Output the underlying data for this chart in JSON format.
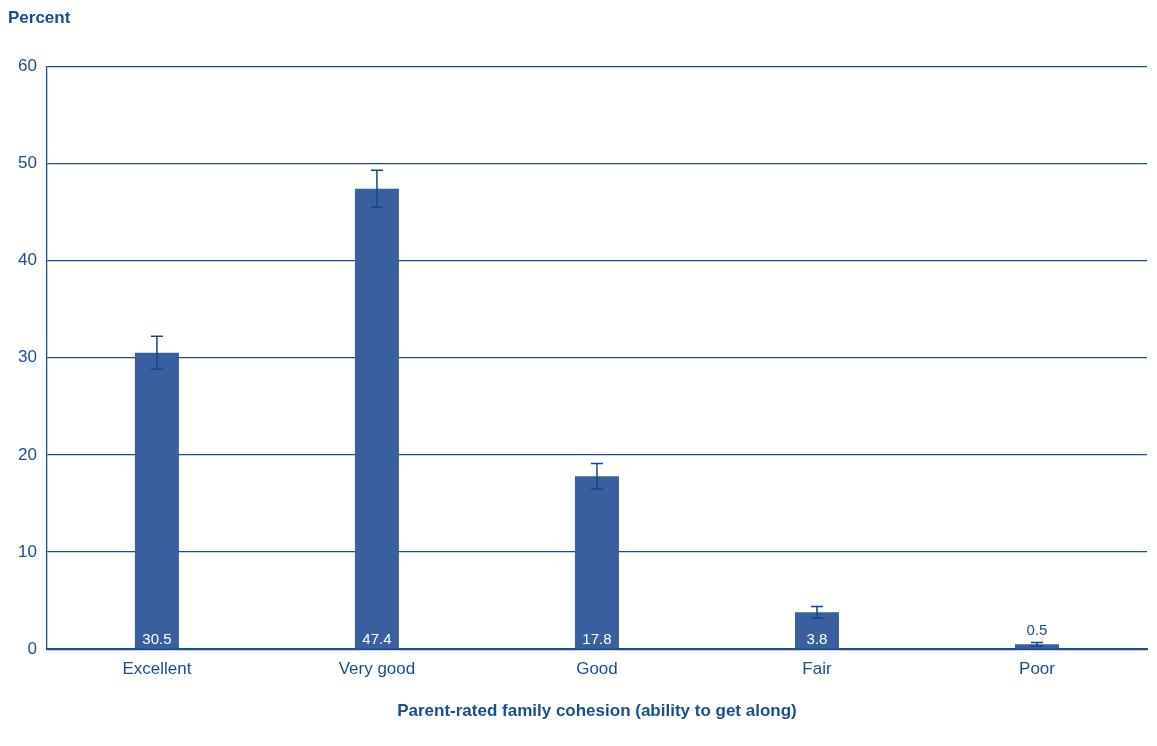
{
  "chart_data": {
    "type": "bar",
    "xlabel": "Parent-rated family cohesion (ability to get along)",
    "ylabel": "Percent",
    "categories": [
      "Excellent",
      "Very good",
      "Good",
      "Fair",
      "Poor"
    ],
    "values": [
      30.5,
      47.4,
      17.8,
      3.8,
      0.5
    ],
    "errors": [
      1.7,
      1.9,
      1.3,
      0.6,
      0.2
    ],
    "color": "#3a5f9f",
    "ylim": [
      0,
      60
    ],
    "yticks": [
      0,
      10,
      20,
      30,
      40,
      50,
      60
    ],
    "grid": "y",
    "data_labels": true
  }
}
